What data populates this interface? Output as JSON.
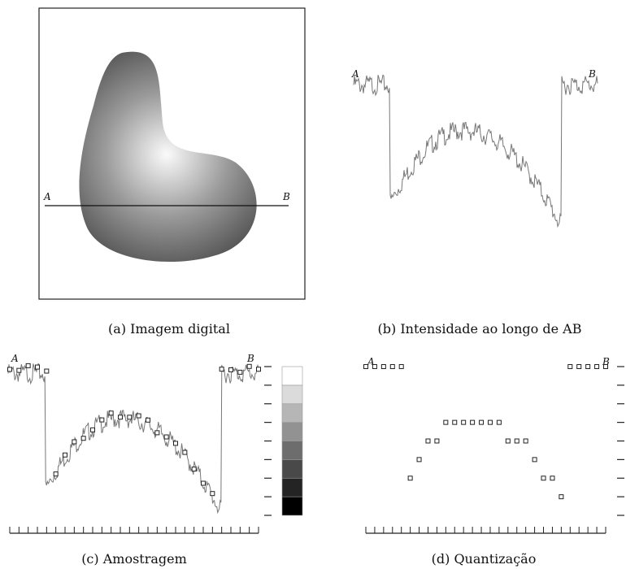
{
  "labels": {
    "start": "A",
    "end": "B"
  },
  "panels": [
    {
      "caption": "(a) Imagem digital"
    },
    {
      "caption": "(b) Intensidade ao longo de AB"
    },
    {
      "caption": "(c) Amostragem"
    },
    {
      "caption": "(d) Quantização"
    }
  ]
}
